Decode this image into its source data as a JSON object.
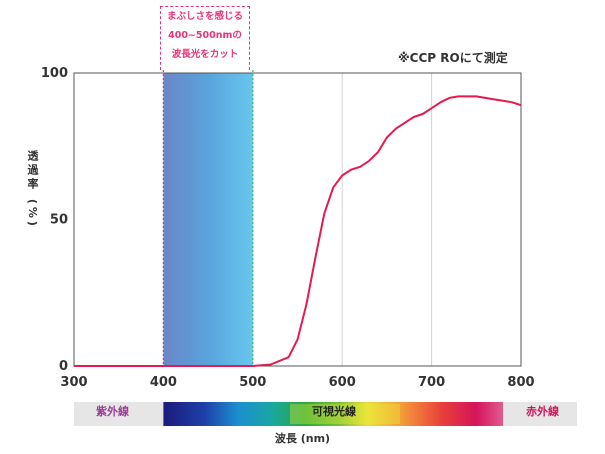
{
  "chart_data": {
    "type": "line",
    "callout_lines": [
      "まぶしさを感じる",
      "400~500nmの",
      "波長光をカット"
    ],
    "note": "※CCP ROにて測定",
    "ylabel": "透過率 (%)",
    "xlabel": "波長 (nm)",
    "xlim": [
      300,
      800
    ],
    "ylim": [
      0,
      100
    ],
    "xticks": [
      "300",
      "400",
      "500",
      "600",
      "700",
      "800"
    ],
    "yticks": [
      "0",
      "50",
      "100"
    ],
    "grid": true,
    "highlight_range": [
      400,
      500
    ],
    "series": [
      {
        "color": "#e8194f",
        "x": [
          300,
          400,
          500,
          520,
          540,
          550,
          560,
          570,
          580,
          590,
          600,
          610,
          620,
          630,
          640,
          650,
          660,
          670,
          680,
          690,
          700,
          710,
          720,
          730,
          740,
          750,
          760,
          770,
          780,
          790,
          800
        ],
        "y": [
          0,
          0,
          0,
          0.5,
          3,
          9,
          21,
          37,
          52,
          61,
          65,
          67,
          68,
          70,
          73,
          78,
          81,
          83,
          85,
          86,
          88,
          90,
          91.5,
          92,
          92,
          92,
          91.5,
          91,
          90.5,
          90,
          89
        ]
      }
    ],
    "spectrum_bar": {
      "uv_label": "紫外線",
      "visible_label": "可視光線",
      "ir_label": "赤外線",
      "colors": {
        "uv": "#e6e6e6",
        "ir": "#e6e6e6",
        "uv_text": "#9b3d96",
        "visible_text": "#222222",
        "ir_text": "#d4145a"
      }
    }
  }
}
